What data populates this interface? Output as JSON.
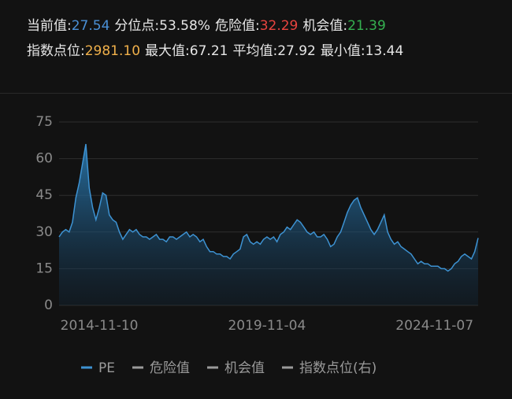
{
  "header": {
    "rows": [
      [
        {
          "label": "当前值:",
          "value": "27.54",
          "color": "#4a90d6"
        },
        {
          "label": "分位点:",
          "value": "53.58%",
          "color": "#e6e6e6"
        },
        {
          "label": "危险值:",
          "value": "32.29",
          "color": "#e8443f"
        },
        {
          "label": "机会值:",
          "value": "21.39",
          "color": "#35b050"
        }
      ],
      [
        {
          "label": "指数点位:",
          "value": "2981.10",
          "color": "#f0b04a"
        },
        {
          "label": "最大值:",
          "value": "67.21",
          "color": "#e6e6e6"
        },
        {
          "label": "平均值:",
          "value": "27.92",
          "color": "#e6e6e6"
        },
        {
          "label": "最小值:",
          "value": "13.44",
          "color": "#e6e6e6"
        }
      ]
    ]
  },
  "chart_data": {
    "type": "area",
    "categories": [
      null,
      null,
      null,
      null,
      null,
      null,
      null,
      null,
      null,
      null,
      null,
      null,
      "2014-11-10",
      null,
      null,
      null,
      null,
      null,
      null,
      null,
      null,
      null,
      null,
      null,
      null,
      null,
      null,
      null,
      null,
      null,
      null,
      null,
      null,
      null,
      null,
      null,
      null,
      null,
      null,
      null,
      null,
      null,
      null,
      null,
      null,
      null,
      null,
      null,
      null,
      null,
      null,
      null,
      null,
      null,
      null,
      null,
      null,
      null,
      null,
      null,
      null,
      null,
      "2019-11-04",
      null,
      null,
      null,
      null,
      null,
      null,
      null,
      null,
      null,
      null,
      null,
      null,
      null,
      null,
      null,
      null,
      null,
      null,
      null,
      null,
      null,
      null,
      null,
      null,
      null,
      null,
      null,
      null,
      null,
      null,
      null,
      null,
      null,
      null,
      null,
      null,
      null,
      null,
      null,
      null,
      null,
      null,
      null,
      null,
      null,
      null,
      null,
      null,
      null,
      "2024-11-07",
      null,
      null,
      null,
      null,
      null,
      null,
      null,
      null,
      null,
      null,
      null,
      null,
      null
    ],
    "series": [
      {
        "color": "#3d92d2",
        "values": [
          28,
          30,
          31,
          30,
          34,
          44,
          50,
          58,
          66,
          48,
          40,
          35,
          40,
          46,
          45,
          37,
          35,
          34,
          30,
          27,
          29,
          31,
          30,
          31,
          29,
          28,
          28,
          27,
          28,
          29,
          27,
          27,
          26,
          28,
          28,
          27,
          28,
          29,
          30,
          28,
          29,
          28,
          26,
          27,
          24,
          22,
          22,
          21,
          21,
          20,
          20,
          19,
          21,
          22,
          23,
          28,
          29,
          26,
          25,
          26,
          25,
          27,
          28,
          27,
          28,
          26,
          29,
          30,
          32,
          31,
          33,
          35,
          34,
          32,
          30,
          29,
          30,
          28,
          28,
          29,
          27,
          24,
          25,
          28,
          30,
          34,
          38,
          41,
          43,
          44,
          40,
          37,
          34,
          31,
          29,
          31,
          34,
          37,
          30,
          27,
          25,
          26,
          24,
          23,
          22,
          21,
          19,
          17,
          18,
          17,
          17,
          16,
          16,
          16,
          15,
          15,
          14,
          15,
          17,
          18,
          20,
          21,
          20,
          19,
          22,
          27.54
        ]
      }
    ],
    "ylim": [
      0,
      75
    ],
    "yticks": [
      0,
      15,
      30,
      45,
      60,
      75
    ],
    "grid": true,
    "legend": [
      {
        "name": "PE",
        "color": "#3d92d2"
      },
      {
        "name": "危险值",
        "color": "#9a9a9a"
      },
      {
        "name": "机会值",
        "color": "#9a9a9a"
      },
      {
        "name": "指数点位(右)",
        "color": "#9a9a9a"
      }
    ]
  }
}
